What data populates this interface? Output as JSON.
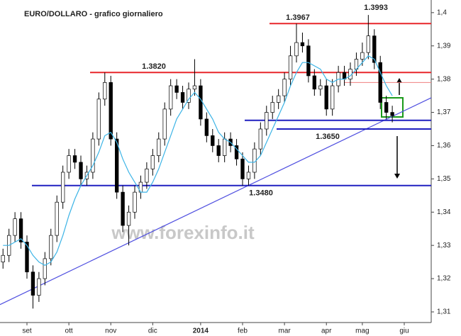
{
  "chart_data": {
    "type": "candlestick",
    "title": "EURO/DOLLARO - grafico giornaliero",
    "watermark": "www.forexinfo.it",
    "categories": [
      null,
      null,
      null,
      null,
      "set",
      null,
      null,
      null,
      null,
      null,
      null,
      "ott",
      null,
      null,
      null,
      null,
      null,
      null,
      "nov",
      null,
      null,
      null,
      null,
      null,
      null,
      "dic",
      null,
      null,
      null,
      null,
      null,
      null,
      null,
      "2014",
      null,
      null,
      null,
      null,
      null,
      null,
      "feb",
      null,
      null,
      null,
      null,
      null,
      null,
      "mar",
      null,
      null,
      null,
      null,
      null,
      null,
      "apr",
      null,
      null,
      null,
      null,
      null,
      "mag",
      null,
      null,
      null,
      null,
      null,
      null,
      "giu",
      null,
      null,
      null,
      null
    ],
    "open": [
      1.325,
      1.327,
      1.333,
      1.338,
      1.331,
      1.322,
      1.315,
      1.32,
      1.326,
      1.333,
      1.343,
      1.352,
      1.357,
      1.355,
      1.35,
      1.352,
      1.362,
      1.374,
      1.379,
      1.362,
      1.346,
      1.336,
      1.34,
      1.346,
      1.349,
      1.353,
      1.357,
      1.362,
      1.371,
      1.378,
      1.376,
      1.373,
      1.377,
      1.378,
      1.368,
      1.363,
      1.36,
      1.357,
      1.362,
      1.36,
      1.356,
      1.35,
      1.352,
      1.359,
      1.365,
      1.37,
      1.373,
      1.375,
      1.38,
      1.387,
      1.391,
      1.39,
      1.381,
      1.377,
      1.378,
      1.371,
      1.378,
      1.382,
      1.38,
      1.383,
      1.386,
      1.388,
      1.393,
      1.385,
      1.373,
      1.37,
      null,
      null,
      null,
      null,
      null,
      null
    ],
    "high": [
      1.329,
      1.335,
      1.34,
      1.34,
      1.333,
      1.324,
      1.322,
      1.328,
      1.335,
      1.345,
      1.354,
      1.359,
      1.359,
      1.357,
      1.354,
      1.364,
      1.376,
      1.382,
      1.381,
      1.364,
      1.348,
      1.342,
      1.348,
      1.351,
      1.355,
      1.359,
      1.364,
      1.373,
      1.38,
      1.38,
      1.378,
      1.379,
      1.386,
      1.38,
      1.37,
      1.365,
      1.362,
      1.364,
      1.364,
      1.362,
      1.358,
      1.354,
      1.361,
      1.367,
      1.372,
      1.375,
      1.377,
      1.382,
      1.39,
      1.3967,
      1.394,
      1.392,
      1.383,
      1.38,
      1.38,
      1.38,
      1.384,
      1.384,
      1.385,
      1.388,
      1.391,
      1.3993,
      1.395,
      1.387,
      1.375,
      1.372,
      null,
      null,
      null,
      null,
      null,
      null
    ],
    "low": [
      1.323,
      1.325,
      1.331,
      1.329,
      1.32,
      1.311,
      1.313,
      1.318,
      1.324,
      1.331,
      1.341,
      1.35,
      1.353,
      1.348,
      1.348,
      1.35,
      1.36,
      1.372,
      1.36,
      1.344,
      1.334,
      1.33,
      1.338,
      1.344,
      1.347,
      1.351,
      1.355,
      1.36,
      1.369,
      1.374,
      1.371,
      1.371,
      1.375,
      1.366,
      1.361,
      1.358,
      1.355,
      1.355,
      1.358,
      1.354,
      1.348,
      1.348,
      1.35,
      1.357,
      1.363,
      1.368,
      1.371,
      1.373,
      1.378,
      1.385,
      1.388,
      1.379,
      1.375,
      1.375,
      1.369,
      1.369,
      1.376,
      1.378,
      1.378,
      1.381,
      1.384,
      1.386,
      1.383,
      1.371,
      1.368,
      1.367,
      null,
      null,
      null,
      null,
      null,
      null
    ],
    "close": [
      1.327,
      1.333,
      1.338,
      1.331,
      1.322,
      1.315,
      1.32,
      1.326,
      1.333,
      1.343,
      1.352,
      1.357,
      1.355,
      1.35,
      1.352,
      1.362,
      1.374,
      1.379,
      1.362,
      1.346,
      1.336,
      1.34,
      1.346,
      1.349,
      1.353,
      1.357,
      1.362,
      1.371,
      1.378,
      1.376,
      1.373,
      1.377,
      1.378,
      1.368,
      1.363,
      1.36,
      1.357,
      1.362,
      1.36,
      1.356,
      1.35,
      1.352,
      1.359,
      1.365,
      1.37,
      1.373,
      1.375,
      1.38,
      1.387,
      1.391,
      1.39,
      1.381,
      1.377,
      1.378,
      1.371,
      1.378,
      1.382,
      1.38,
      1.383,
      1.386,
      1.388,
      1.393,
      1.385,
      1.373,
      1.37,
      1.369,
      null,
      null,
      null,
      null,
      null,
      null
    ],
    "ma": {
      "color": "#3cb4e6",
      "values": [
        1.33,
        1.33,
        1.331,
        1.332,
        1.33,
        1.327,
        1.325,
        1.324,
        1.325,
        1.328,
        1.333,
        1.339,
        1.344,
        1.348,
        1.351,
        1.354,
        1.358,
        1.363,
        1.364,
        1.361,
        1.356,
        1.352,
        1.349,
        1.346,
        1.346,
        1.349,
        1.353,
        1.358,
        1.363,
        1.368,
        1.371,
        1.374,
        1.376,
        1.374,
        1.371,
        1.368,
        1.364,
        1.362,
        1.361,
        1.359,
        1.357,
        1.355,
        1.355,
        1.357,
        1.361,
        1.365,
        1.369,
        1.373,
        1.378,
        1.382,
        1.385,
        1.385,
        1.384,
        1.383,
        1.38,
        1.379,
        1.38,
        1.38,
        1.381,
        1.383,
        1.385,
        1.387,
        1.386,
        1.382,
        1.378,
        1.375,
        null,
        null,
        null,
        null,
        null,
        null
      ]
    },
    "levels": [
      {
        "value": 1.3967,
        "color": "#e8262a"
      },
      {
        "value": 1.382,
        "color": "#e8262a"
      },
      {
        "value": 1.379,
        "color": "#f08080"
      },
      {
        "value": 1.3676,
        "color": "#2020c0"
      },
      {
        "value": 1.365,
        "color": "#2020c0"
      },
      {
        "value": 1.348,
        "color": "#2020c0"
      }
    ],
    "annotations": [
      {
        "text": "1.3967",
        "value": 1.3967
      },
      {
        "text": "1.3993",
        "value": 1.3993
      },
      {
        "text": "1.3820",
        "value": 1.382
      },
      {
        "text": "1.3650",
        "value": 1.365
      },
      {
        "text": "1.3480",
        "value": 1.348
      }
    ],
    "trendline": {
      "color": "#5050e0",
      "values": [
        1.3122,
        1.3744
      ]
    },
    "ylim": [
      1.3068,
      1.4038
    ],
    "yticks": [
      {
        "value": 1.31,
        "label": "1,31"
      },
      {
        "value": 1.32,
        "label": "1,32"
      },
      {
        "value": 1.33,
        "label": "1,33"
      },
      {
        "value": 1.34,
        "label": "1,34"
      },
      {
        "value": 1.35,
        "label": "1,35"
      },
      {
        "value": 1.36,
        "label": "1,36"
      },
      {
        "value": 1.37,
        "label": "1,37"
      },
      {
        "value": 1.38,
        "label": "1,38"
      },
      {
        "value": 1.39,
        "label": "1,39"
      },
      {
        "value": 1.4,
        "label": "1,4"
      }
    ]
  }
}
